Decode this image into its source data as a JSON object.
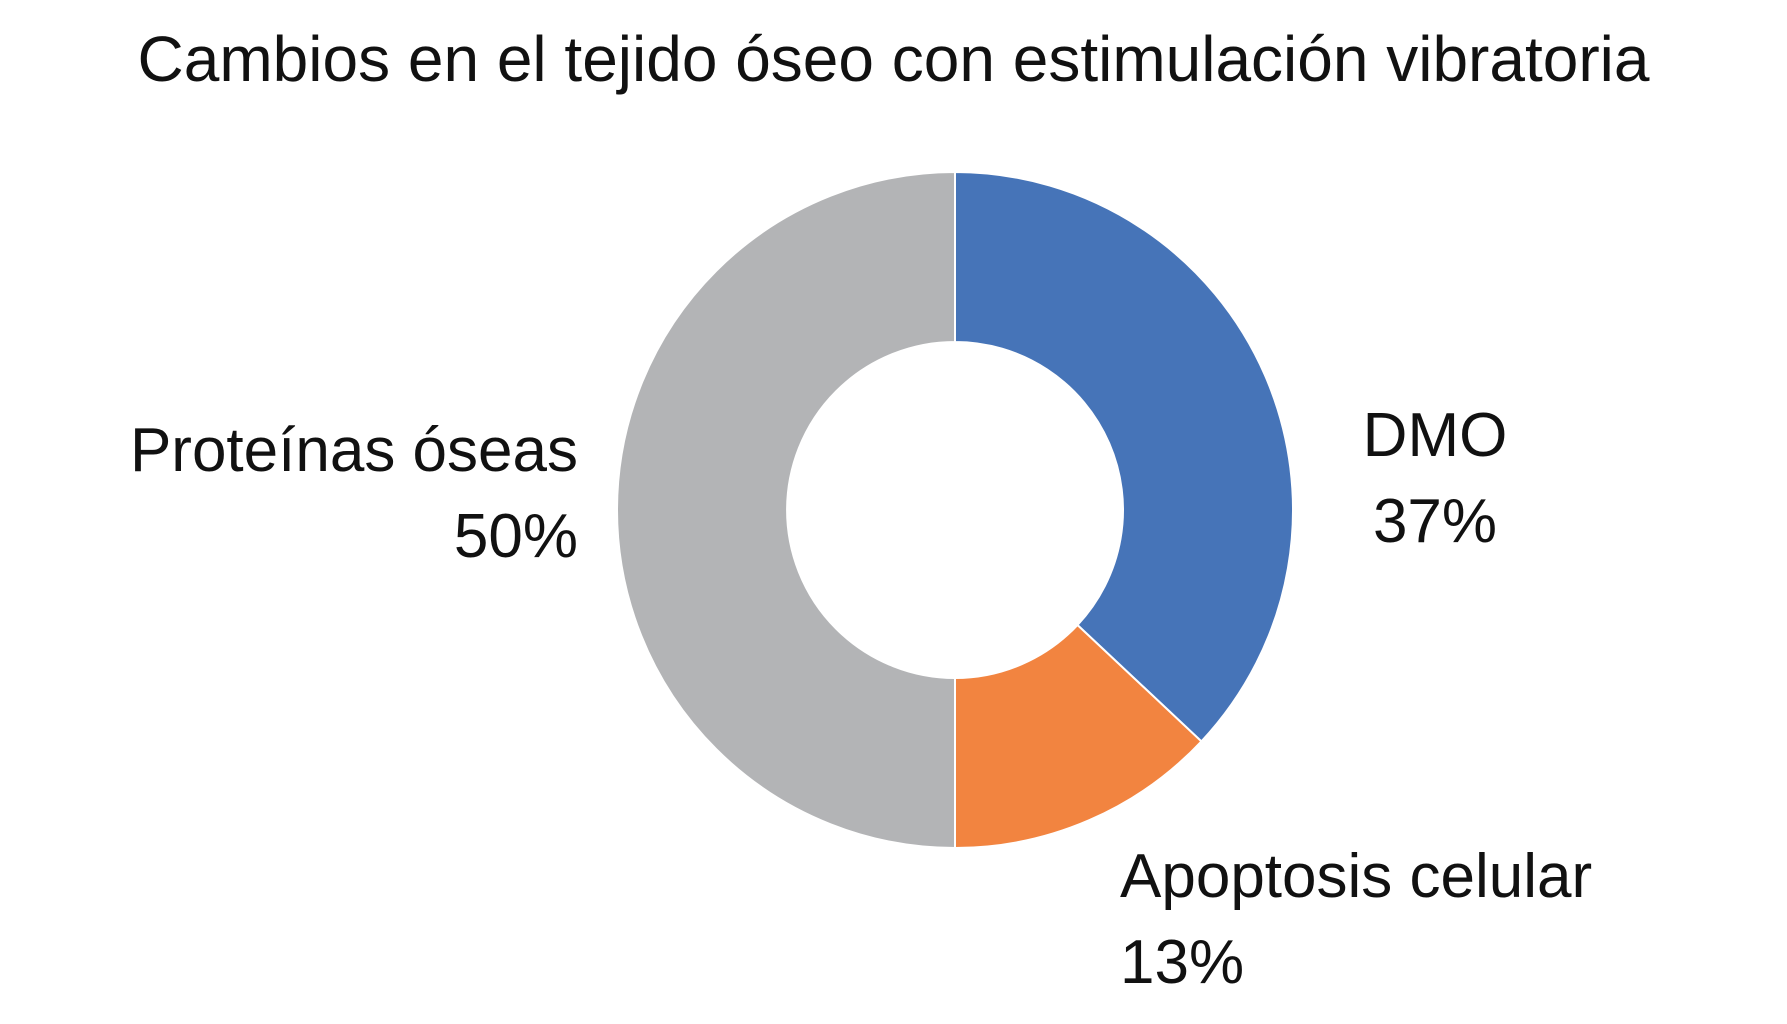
{
  "chart_data": {
    "type": "pie",
    "variant": "donut",
    "title": "Cambios en el tejido óseo con estimulación vibratoria",
    "slices": [
      {
        "category": "DMO",
        "value": 37,
        "label": "37%",
        "color": "#4674B8"
      },
      {
        "category": "Apoptosis celular",
        "value": 13,
        "label": "13%",
        "color": "#F28440"
      },
      {
        "category": "Proteínas óseas",
        "value": 50,
        "label": "50%",
        "color": "#B3B4B6"
      }
    ],
    "start_angle": "12 o'clock",
    "direction": "clockwise",
    "legend": "none (data labels beside slices)"
  }
}
